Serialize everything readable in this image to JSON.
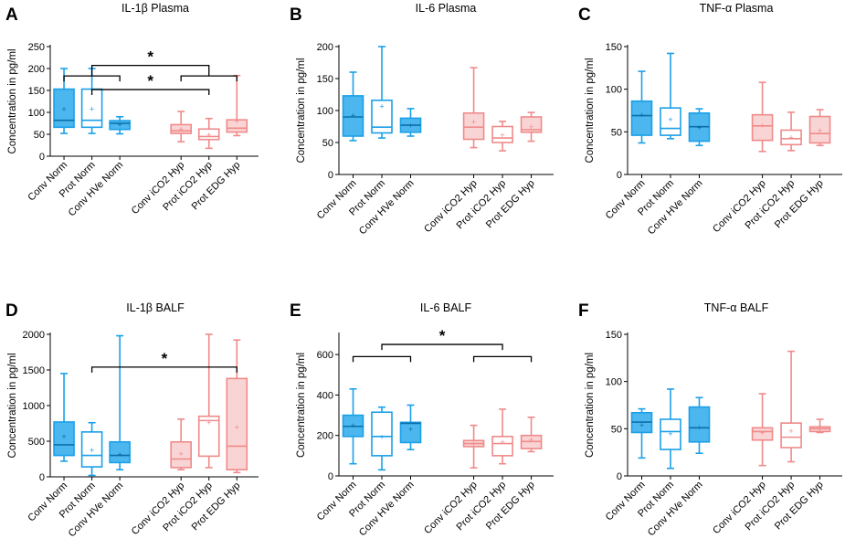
{
  "figure": {
    "ylabel": "Concentration in pg/ml",
    "colors": {
      "blue": "#1aa0e8",
      "blue_fill": "#4cb6ee",
      "red": "#f08a8a",
      "red_fill": "#f9d4d4",
      "axis": "#000000"
    }
  },
  "chart_data": [
    {
      "id": "A",
      "letter": "A",
      "title": "IL-1β Plasma",
      "type": "box",
      "ylabel": "Concentration in pg/ml",
      "ylim": [
        0,
        250
      ],
      "yticks": [
        0,
        50,
        100,
        150,
        200,
        250
      ],
      "categories": [
        "Conv Norm",
        "Prot Norm",
        "Conv HVe Norm",
        "Conv iCO2 Hyp",
        "Prot iCO2 Hyp",
        "Prot EDG Hyp"
      ],
      "boxes": [
        {
          "min": 52,
          "q1": 66,
          "median": 82,
          "q3": 153,
          "max": 200,
          "mean": 108,
          "color": "blue",
          "filled": true
        },
        {
          "min": 52,
          "q1": 66,
          "median": 82,
          "q3": 153,
          "max": 200,
          "mean": 108,
          "color": "blue",
          "filled": false
        },
        {
          "min": 51,
          "q1": 61,
          "median": 75,
          "q3": 81,
          "max": 90,
          "mean": 73,
          "color": "blue",
          "filled": true
        },
        {
          "min": 33,
          "q1": 52,
          "median": 58,
          "q3": 72,
          "max": 102,
          "mean": 62,
          "color": "red",
          "filled": true
        },
        {
          "min": 18,
          "q1": 38,
          "median": 45,
          "q3": 62,
          "max": 86,
          "mean": 50,
          "color": "red",
          "filled": false
        },
        {
          "min": 47,
          "q1": 55,
          "median": 64,
          "q3": 83,
          "max": 184,
          "mean": 80,
          "color": "red",
          "filled": true
        }
      ],
      "significance": [
        {
          "type": "group",
          "left_group": [
            0,
            2
          ],
          "right_group": [
            3,
            5
          ],
          "y": 183,
          "join_y": 207,
          "label": "*"
        },
        {
          "type": "pair",
          "from": 1,
          "to": 4,
          "y": 152,
          "label": "*"
        }
      ]
    },
    {
      "id": "B",
      "letter": "B",
      "title": "IL-6 Plasma",
      "type": "box",
      "ylabel": "Concentration in pg/ml",
      "ylim": [
        0,
        200
      ],
      "yticks": [
        0,
        50,
        100,
        150,
        200
      ],
      "categories": [
        "Conv Norm",
        "Prot Norm",
        "Conv HVe Norm",
        "Conv iCO2 Hyp",
        "Prot iCO2 Hyp",
        "Prot EDG Hyp"
      ],
      "boxes": [
        {
          "min": 53,
          "q1": 60,
          "median": 90,
          "q3": 123,
          "max": 160,
          "mean": 93,
          "color": "blue",
          "filled": true
        },
        {
          "min": 57,
          "q1": 65,
          "median": 74,
          "q3": 116,
          "max": 200,
          "mean": 107,
          "color": "blue",
          "filled": false
        },
        {
          "min": 60,
          "q1": 66,
          "median": 77,
          "q3": 88,
          "max": 103,
          "mean": 77,
          "color": "blue",
          "filled": true
        },
        {
          "min": 42,
          "q1": 55,
          "median": 74,
          "q3": 96,
          "max": 167,
          "mean": 83,
          "color": "red",
          "filled": true
        },
        {
          "min": 37,
          "q1": 50,
          "median": 57,
          "q3": 75,
          "max": 83,
          "mean": 62,
          "color": "red",
          "filled": false
        },
        {
          "min": 52,
          "q1": 66,
          "median": 70,
          "q3": 90,
          "max": 97,
          "mean": 75,
          "color": "red",
          "filled": true
        }
      ],
      "significance": []
    },
    {
      "id": "C",
      "letter": "C",
      "title": "TNF-α Plasma",
      "type": "box",
      "ylabel": "Concentration in pg/ml",
      "ylim": [
        0,
        150
      ],
      "yticks": [
        0,
        50,
        100,
        150
      ],
      "categories": [
        "Conv Norm",
        "Prot Norm",
        "Conv HVe Norm",
        "Conv iCO2 Hyp",
        "Prot iCO2 Hyp",
        "Prot EDG Hyp"
      ],
      "boxes": [
        {
          "min": 37,
          "q1": 46,
          "median": 69,
          "q3": 86,
          "max": 121,
          "mean": 70,
          "color": "blue",
          "filled": true
        },
        {
          "min": 42,
          "q1": 46,
          "median": 54,
          "q3": 78,
          "max": 142,
          "mean": 65,
          "color": "blue",
          "filled": false
        },
        {
          "min": 34,
          "q1": 39,
          "median": 56,
          "q3": 72,
          "max": 77,
          "mean": 55,
          "color": "blue",
          "filled": true
        },
        {
          "min": 27,
          "q1": 40,
          "median": 57,
          "q3": 70,
          "max": 108,
          "mean": 58,
          "color": "red",
          "filled": true
        },
        {
          "min": 28,
          "q1": 35,
          "median": 42,
          "q3": 52,
          "max": 73,
          "mean": 44,
          "color": "red",
          "filled": false
        },
        {
          "min": 34,
          "q1": 37,
          "median": 48,
          "q3": 68,
          "max": 76,
          "mean": 52,
          "color": "red",
          "filled": true
        }
      ],
      "significance": []
    },
    {
      "id": "D",
      "letter": "D",
      "title": "IL-1β BALF",
      "type": "box",
      "ylabel": "Concentration in pg/ml",
      "ylim": [
        0,
        2000
      ],
      "yticks": [
        0,
        500,
        1000,
        1500,
        2000
      ],
      "categories": [
        "Conv Norm",
        "Prot Norm",
        "Conv HVe Norm",
        "Conv iCO2 Hyp",
        "Prot iCO2 Hyp",
        "Prot EDG Hyp"
      ],
      "boxes": [
        {
          "min": 220,
          "q1": 300,
          "median": 450,
          "q3": 770,
          "max": 1450,
          "mean": 570,
          "color": "blue",
          "filled": true
        },
        {
          "min": 20,
          "q1": 140,
          "median": 300,
          "q3": 630,
          "max": 760,
          "mean": 380,
          "color": "blue",
          "filled": false
        },
        {
          "min": 100,
          "q1": 200,
          "median": 300,
          "q3": 490,
          "max": 1980,
          "mean": 320,
          "color": "blue",
          "filled": true
        },
        {
          "min": 100,
          "q1": 130,
          "median": 250,
          "q3": 490,
          "max": 810,
          "mean": 330,
          "color": "red",
          "filled": true
        },
        {
          "min": 130,
          "q1": 290,
          "median": 790,
          "q3": 850,
          "max": 2000,
          "mean": 770,
          "color": "red",
          "filled": false
        },
        {
          "min": 60,
          "q1": 100,
          "median": 430,
          "q3": 1380,
          "max": 1920,
          "mean": 700,
          "color": "red",
          "filled": true
        }
      ],
      "significance": [
        {
          "type": "pair",
          "from": 1,
          "to": 5,
          "y": 1540,
          "label": "*"
        }
      ]
    },
    {
      "id": "E",
      "letter": "E",
      "title": "IL-6 BALF",
      "type": "box",
      "ylabel": "Concentration in pg/ml",
      "ylim": [
        0,
        700
      ],
      "yticks": [
        0,
        200,
        400,
        600
      ],
      "categories": [
        "Conv Norm",
        "Prot Norm",
        "Conv HVe Norm",
        "Conv iCO2 Hyp",
        "Prot iCO2 Hyp",
        "Prot EDG Hyp"
      ],
      "boxes": [
        {
          "min": 60,
          "q1": 195,
          "median": 245,
          "q3": 300,
          "max": 430,
          "mean": 250,
          "color": "blue",
          "filled": true
        },
        {
          "min": 30,
          "q1": 100,
          "median": 195,
          "q3": 315,
          "max": 340,
          "mean": 195,
          "color": "blue",
          "filled": false
        },
        {
          "min": 130,
          "q1": 165,
          "median": 260,
          "q3": 265,
          "max": 350,
          "mean": 232,
          "color": "blue",
          "filled": true
        },
        {
          "min": 40,
          "q1": 145,
          "median": 160,
          "q3": 175,
          "max": 250,
          "mean": 160,
          "color": "red",
          "filled": true
        },
        {
          "min": 60,
          "q1": 100,
          "median": 160,
          "q3": 195,
          "max": 330,
          "mean": 170,
          "color": "red",
          "filled": false
        },
        {
          "min": 120,
          "q1": 135,
          "median": 170,
          "q3": 200,
          "max": 290,
          "mean": 180,
          "color": "red",
          "filled": true
        }
      ],
      "significance": [
        {
          "type": "pair",
          "from": 1,
          "to": 4,
          "y": 650,
          "label": "*"
        },
        {
          "type": "pair",
          "from": 0,
          "to": 2,
          "y": 590,
          "label": ""
        },
        {
          "type": "pair",
          "from": 3,
          "to": 5,
          "y": 590,
          "label": ""
        }
      ]
    },
    {
      "id": "F",
      "letter": "F",
      "title": "TNF-α BALF",
      "type": "box",
      "ylabel": "Concentration in pg/ml",
      "ylim": [
        0,
        150
      ],
      "yticks": [
        0,
        50,
        100,
        150
      ],
      "categories": [
        "Conv Norm",
        "Prot Norm",
        "Conv HVe Norm",
        "Conv iCO2 Hyp",
        "Prot iCO2 Hyp",
        "Prot EDG Hyp"
      ],
      "boxes": [
        {
          "min": 19,
          "q1": 46,
          "median": 57,
          "q3": 67,
          "max": 71,
          "mean": 54,
          "color": "blue",
          "filled": true
        },
        {
          "min": 8,
          "q1": 28,
          "median": 47,
          "q3": 60,
          "max": 92,
          "mean": 45,
          "color": "blue",
          "filled": false
        },
        {
          "min": 24,
          "q1": 36,
          "median": 51,
          "q3": 73,
          "max": 83,
          "mean": 52,
          "color": "blue",
          "filled": true
        },
        {
          "min": 11,
          "q1": 38,
          "median": 47,
          "q3": 51,
          "max": 87,
          "mean": 46,
          "color": "red",
          "filled": true
        },
        {
          "min": 15,
          "q1": 30,
          "median": 41,
          "q3": 56,
          "max": 132,
          "mean": 48,
          "color": "red",
          "filled": false
        },
        {
          "min": 46,
          "q1": 47,
          "median": 50,
          "q3": 52,
          "max": 60,
          "mean": 50,
          "color": "red",
          "filled": true
        }
      ],
      "significance": []
    }
  ]
}
